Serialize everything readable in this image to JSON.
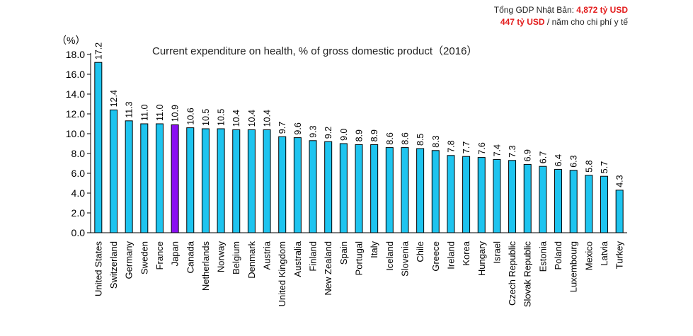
{
  "note": {
    "line1_prefix": "Tổng GDP Nhật Bản: ",
    "line1_value": "4,872 tỷ USD",
    "line2_value": "447 tỷ USD",
    "line2_suffix": " / năm cho chi phí y tế"
  },
  "chart_data": {
    "type": "bar",
    "title": "Current expenditure on health, % of gross domestic product（2016）",
    "ylabel": "（%）",
    "xlabel": "",
    "ylim": [
      0,
      18
    ],
    "ytick_step": 2,
    "highlight": "Japan",
    "colors": {
      "bar": "#1ec4ef",
      "highlight": "#8a0ff2"
    },
    "categories": [
      "United States",
      "Switzerland",
      "Germany",
      "Sweden",
      "France",
      "Japan",
      "Canada",
      "Netherlands",
      "Norway",
      "Belgium",
      "Denmark",
      "Austria",
      "United Kingdom",
      "Australia",
      "Finland",
      "New Zealand",
      "Spain",
      "Portugal",
      "Italy",
      "Iceland",
      "Slovenia",
      "Chile",
      "Greece",
      "Ireland",
      "Korea",
      "Hungary",
      "Israel",
      "Czech Republic",
      "Slovak Republic",
      "Estonia",
      "Poland",
      "Luxembourg",
      "Mexico",
      "Latvia",
      "Turkey"
    ],
    "values": [
      17.2,
      12.4,
      11.3,
      11.0,
      11.0,
      10.9,
      10.6,
      10.5,
      10.5,
      10.4,
      10.4,
      10.4,
      9.7,
      9.6,
      9.3,
      9.2,
      9.0,
      8.9,
      8.9,
      8.6,
      8.6,
      8.5,
      8.3,
      7.8,
      7.7,
      7.6,
      7.4,
      7.3,
      6.9,
      6.7,
      6.4,
      6.3,
      5.8,
      5.7,
      4.3
    ]
  }
}
